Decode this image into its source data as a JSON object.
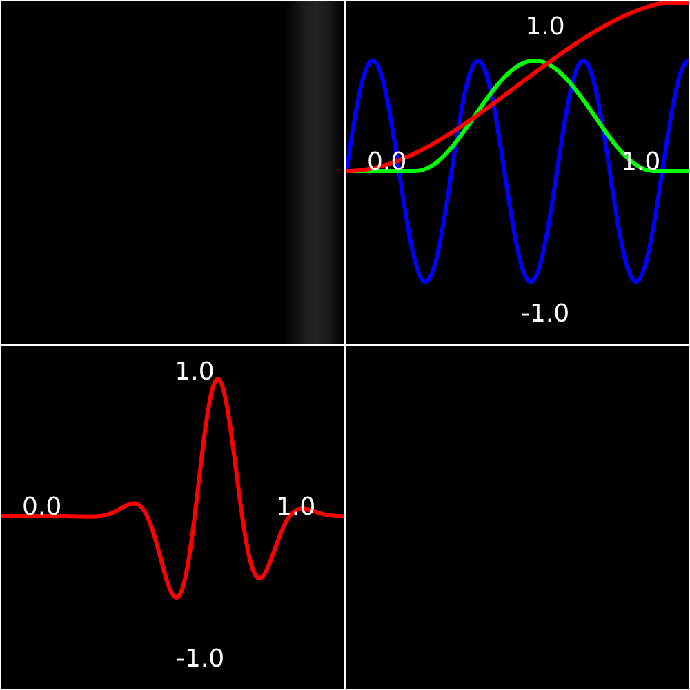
{
  "colors": {
    "background": "#000000",
    "frame": "#ffffff",
    "band": "#222222",
    "series_blue": "#0000ff",
    "series_green": "#00ff00",
    "series_red": "#ff0000"
  },
  "chart_data": [
    {
      "panel": "top-left",
      "type": "heatmap",
      "x": [
        0.0,
        0.83,
        0.86,
        0.9,
        0.92,
        0.94,
        0.97,
        1.0
      ],
      "intensity": [
        0.0,
        0.0,
        0.05,
        0.1,
        0.13,
        0.1,
        0.05,
        0.0
      ]
    },
    {
      "panel": "top-right",
      "type": "line",
      "xlim": [
        0.0,
        1.0
      ],
      "ylim": [
        -1.0,
        1.0
      ],
      "labels": {
        "x_start": "0.0",
        "x_end": "1.0",
        "y_top": "1.0",
        "y_bottom": "-1.0"
      },
      "series": [
        {
          "color": "#0000ff",
          "function": "sin(2*pi*3.25*x)"
        },
        {
          "color": "#00ff00",
          "function": "window(x; 0.2, 0.9)"
        },
        {
          "color": "#ff0000",
          "function": "smoothstep(x)"
        }
      ]
    },
    {
      "panel": "bottom-left",
      "type": "line",
      "xlim": [
        0.0,
        1.0
      ],
      "ylim": [
        -1.0,
        1.0
      ],
      "labels": {
        "x_start": "0.0",
        "x_end": "1.0",
        "y_top": "1.0",
        "y_bottom": "-1.0"
      },
      "series": [
        {
          "color": "#ff0000",
          "function": "windowed sine wavelet"
        }
      ]
    },
    {
      "panel": "bottom-right",
      "type": "line",
      "series": []
    }
  ],
  "labels": {
    "tr_x_start": "0.0",
    "tr_x_end": "1.0",
    "tr_y_top": "1.0",
    "tr_y_bottom": "-1.0",
    "bl_x_start": "0.0",
    "bl_x_end": "1.0",
    "bl_y_top": "1.0",
    "bl_y_bottom": "-1.0"
  }
}
